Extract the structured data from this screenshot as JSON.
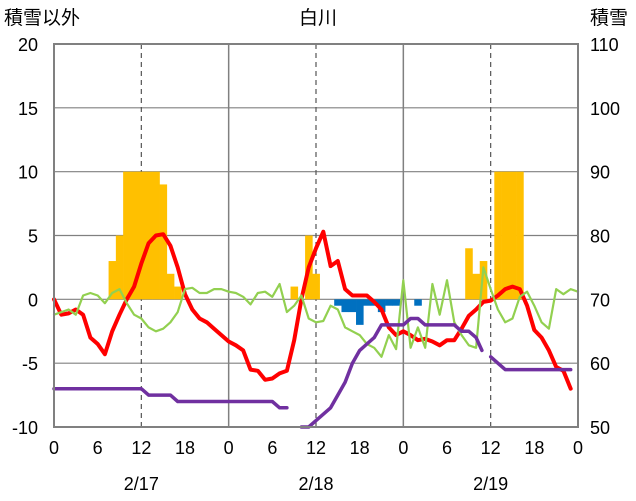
{
  "chart_data": {
    "type": "combo (bar + line)",
    "title": "白川",
    "y_left_label": "積雪以外",
    "y_right_label": "積雪",
    "y_left": {
      "min": -10,
      "max": 20,
      "ticks": [
        20,
        15,
        10,
        5,
        0,
        -5,
        -10
      ]
    },
    "y_right": {
      "min": 50,
      "max": 110,
      "ticks": [
        110,
        100,
        90,
        80,
        70,
        60,
        50
      ]
    },
    "x": {
      "unit": "hours",
      "min": 0,
      "max": 72,
      "tick_hours": [
        0,
        6,
        12,
        18,
        24,
        30,
        36,
        42,
        48,
        54,
        60,
        66,
        72
      ],
      "tick_labels": [
        "0",
        "6",
        "12",
        "18",
        "0",
        "6",
        "12",
        "18",
        "0",
        "6",
        "12",
        "18",
        "0"
      ],
      "day_boundaries": [
        24,
        48
      ],
      "noon_lines": [
        12,
        36,
        60
      ]
    },
    "dates": [
      {
        "label": "2/17",
        "hour": 12
      },
      {
        "label": "2/18",
        "hour": 36
      },
      {
        "label": "2/19",
        "hour": 60
      }
    ],
    "colors": {
      "orange": "#FFC000",
      "blue": "#0070C0",
      "red": "#FF0000",
      "green": "#92D050",
      "purple": "#7030A0"
    },
    "series": [
      {
        "name": "positive bars",
        "kind": "bar",
        "color": "#FFC000",
        "data": [
          [
            8,
            3
          ],
          [
            9,
            5
          ],
          [
            10,
            10
          ],
          [
            11,
            10
          ],
          [
            12,
            10
          ],
          [
            13,
            10
          ],
          [
            14,
            10
          ],
          [
            15,
            9
          ],
          [
            16,
            2
          ],
          [
            17,
            1
          ],
          [
            33,
            1
          ],
          [
            35,
            5
          ],
          [
            36,
            2
          ],
          [
            57,
            4
          ],
          [
            58,
            2
          ],
          [
            59,
            3
          ],
          [
            61,
            10
          ],
          [
            62,
            10
          ],
          [
            63,
            10
          ],
          [
            64,
            10
          ]
        ]
      },
      {
        "name": "negative bars",
        "kind": "bar",
        "color": "#0070C0",
        "data": [
          [
            39,
            -0.5
          ],
          [
            40,
            -1
          ],
          [
            41,
            -1
          ],
          [
            42,
            -2
          ],
          [
            43,
            -0.5
          ],
          [
            44,
            -0.5
          ],
          [
            45,
            -1
          ],
          [
            46,
            -0.5
          ],
          [
            47,
            -0.5
          ],
          [
            50,
            -0.5
          ]
        ]
      },
      {
        "name": "red line",
        "kind": "line",
        "axis": "left",
        "color": "#FF0000",
        "data": [
          [
            0,
            0
          ],
          [
            1,
            -1.2
          ],
          [
            2,
            -1.1
          ],
          [
            3,
            -0.8
          ],
          [
            4,
            -1.2
          ],
          [
            5,
            -3
          ],
          [
            6,
            -3.5
          ],
          [
            7,
            -4.3
          ],
          [
            8,
            -2.5
          ],
          [
            9,
            -1.2
          ],
          [
            10,
            0
          ],
          [
            11,
            1
          ],
          [
            12,
            2.8
          ],
          [
            13,
            4.4
          ],
          [
            14,
            5
          ],
          [
            15,
            5.1
          ],
          [
            16,
            4.2
          ],
          [
            17,
            2.5
          ],
          [
            18,
            0.4
          ],
          [
            19,
            -0.8
          ],
          [
            20,
            -1.5
          ],
          [
            21,
            -1.8
          ],
          [
            22,
            -2.3
          ],
          [
            23,
            -2.8
          ],
          [
            24,
            -3.3
          ],
          [
            25,
            -3.6
          ],
          [
            26,
            -4
          ],
          [
            27,
            -5.5
          ],
          [
            28,
            -5.6
          ],
          [
            29,
            -6.3
          ],
          [
            30,
            -6.2
          ],
          [
            31,
            -5.8
          ],
          [
            32,
            -5.6
          ],
          [
            33,
            -3.2
          ],
          [
            34,
            0
          ],
          [
            35,
            2.5
          ],
          [
            36,
            4
          ],
          [
            37,
            5.3
          ],
          [
            38,
            2.6
          ],
          [
            39,
            3
          ],
          [
            40,
            0.8
          ],
          [
            41,
            0.3
          ],
          [
            42,
            0.3
          ],
          [
            43,
            0.3
          ],
          [
            44,
            -0.2
          ],
          [
            45,
            -0.8
          ],
          [
            46,
            -2.2
          ],
          [
            47,
            -2.8
          ],
          [
            48,
            -2.5
          ],
          [
            49,
            -2.8
          ],
          [
            50,
            -3.2
          ],
          [
            51,
            -3.1
          ],
          [
            52,
            -3.3
          ],
          [
            53,
            -3.6
          ],
          [
            54,
            -3.2
          ],
          [
            55,
            -3.2
          ],
          [
            56,
            -2.3
          ],
          [
            57,
            -1.3
          ],
          [
            58,
            -0.8
          ],
          [
            59,
            -0.2
          ],
          [
            60,
            -0.1
          ],
          [
            61,
            0.3
          ],
          [
            62,
            0.8
          ],
          [
            63,
            1
          ],
          [
            64,
            0.8
          ],
          [
            65,
            -0.5
          ],
          [
            66,
            -2.4
          ],
          [
            67,
            -3
          ],
          [
            68,
            -4
          ],
          [
            69,
            -5.3
          ],
          [
            70,
            -5.6
          ],
          [
            71,
            -7
          ]
        ]
      },
      {
        "name": "green line",
        "kind": "line",
        "axis": "left",
        "color": "#92D050",
        "data": [
          [
            0,
            -1.2
          ],
          [
            1,
            -1
          ],
          [
            2,
            -0.8
          ],
          [
            3,
            -1.2
          ],
          [
            4,
            0.3
          ],
          [
            5,
            0.5
          ],
          [
            6,
            0.3
          ],
          [
            7,
            -0.3
          ],
          [
            8,
            0.5
          ],
          [
            9,
            0.8
          ],
          [
            10,
            -0.3
          ],
          [
            11,
            -1.2
          ],
          [
            12,
            -1.5
          ],
          [
            13,
            -2.2
          ],
          [
            14,
            -2.5
          ],
          [
            15,
            -2.3
          ],
          [
            16,
            -1.8
          ],
          [
            17,
            -1
          ],
          [
            18,
            0.8
          ],
          [
            19,
            0.9
          ],
          [
            20,
            0.5
          ],
          [
            21,
            0.5
          ],
          [
            22,
            0.8
          ],
          [
            23,
            0.8
          ],
          [
            24,
            0.6
          ],
          [
            25,
            0.5
          ],
          [
            26,
            0.2
          ],
          [
            27,
            -0.4
          ],
          [
            28,
            0.5
          ],
          [
            29,
            0.6
          ],
          [
            30,
            0.2
          ],
          [
            31,
            1.2
          ],
          [
            32,
            -1
          ],
          [
            33,
            -0.5
          ],
          [
            34,
            0.3
          ],
          [
            35,
            -1.5
          ],
          [
            36,
            -1.8
          ],
          [
            37,
            -1.7
          ],
          [
            38,
            -0.5
          ],
          [
            39,
            -0.8
          ],
          [
            40,
            -2.2
          ],
          [
            41,
            -2.5
          ],
          [
            42,
            -2.8
          ],
          [
            43,
            -3.5
          ],
          [
            44,
            -3.8
          ],
          [
            45,
            -4.5
          ],
          [
            46,
            -2.8
          ],
          [
            47,
            -3.9
          ],
          [
            48,
            1.5
          ],
          [
            49,
            -3.8
          ],
          [
            50,
            -2.2
          ],
          [
            51,
            -3.8
          ],
          [
            52,
            1.2
          ],
          [
            53,
            -1.2
          ],
          [
            54,
            1.5
          ],
          [
            55,
            -1.8
          ],
          [
            56,
            -2.8
          ],
          [
            57,
            -3.6
          ],
          [
            58,
            -3.8
          ],
          [
            59,
            2.5
          ],
          [
            60,
            0.8
          ],
          [
            61,
            -0.8
          ],
          [
            62,
            -1.8
          ],
          [
            63,
            -1.5
          ],
          [
            64,
            0.2
          ],
          [
            65,
            0.6
          ],
          [
            66,
            -0.5
          ],
          [
            67,
            -1.8
          ],
          [
            68,
            -2.3
          ],
          [
            69,
            0.8
          ],
          [
            70,
            0.4
          ],
          [
            71,
            0.8
          ],
          [
            72,
            0.6
          ]
        ]
      },
      {
        "name": "purple line (積雪)",
        "kind": "line",
        "axis": "right",
        "color": "#7030A0",
        "segments": [
          [
            [
              0,
              56
            ],
            [
              6,
              56
            ],
            [
              12,
              56
            ],
            [
              13,
              55
            ],
            [
              16,
              55
            ],
            [
              17,
              54
            ],
            [
              20,
              54
            ],
            [
              24,
              54
            ],
            [
              30,
              54
            ],
            [
              31,
              53
            ],
            [
              32,
              53
            ]
          ],
          [
            [
              34,
              50
            ],
            [
              35,
              50
            ],
            [
              36,
              51
            ],
            [
              37,
              52
            ],
            [
              38,
              53
            ],
            [
              39,
              55
            ],
            [
              40,
              57
            ],
            [
              41,
              60
            ],
            [
              42,
              62
            ],
            [
              43,
              63
            ],
            [
              44,
              64
            ],
            [
              45,
              66
            ],
            [
              46,
              66
            ],
            [
              47,
              66
            ],
            [
              48,
              66
            ],
            [
              49,
              67
            ],
            [
              50,
              67
            ],
            [
              51,
              66
            ],
            [
              52,
              66
            ],
            [
              53,
              66
            ],
            [
              54,
              66
            ],
            [
              55,
              66
            ],
            [
              56,
              65
            ],
            [
              57,
              65
            ],
            [
              58,
              64
            ],
            [
              58.8,
              62
            ]
          ],
          [
            [
              60,
              61
            ],
            [
              61,
              60
            ],
            [
              62,
              59
            ],
            [
              64,
              59
            ],
            [
              66,
              59
            ],
            [
              68,
              59
            ],
            [
              70,
              59
            ],
            [
              71,
              59
            ]
          ]
        ]
      }
    ]
  }
}
